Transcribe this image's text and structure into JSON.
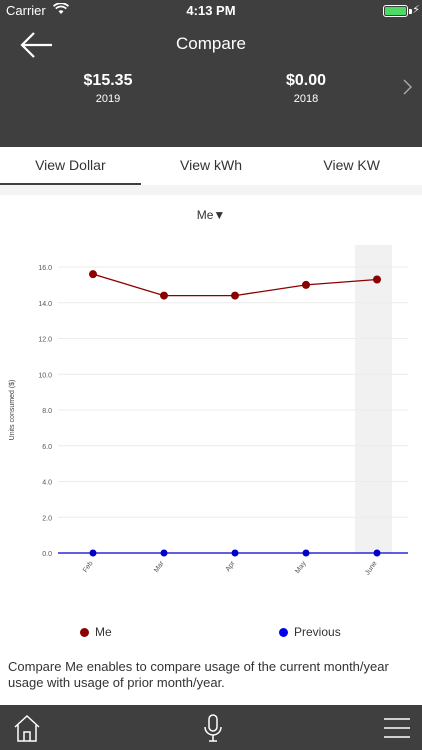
{
  "status_bar": {
    "carrier": "Carrier",
    "time": "4:13 PM",
    "icons": [
      "wifi-icon",
      "battery-icon",
      "charging-bolt-icon"
    ]
  },
  "header": {
    "title": "Compare",
    "back_icon": "arrow-left-icon",
    "next_icon": "chevron-right-icon",
    "summaries": [
      {
        "value": "$15.35",
        "year": "2019"
      },
      {
        "value": "$0.00",
        "year": "2018"
      }
    ]
  },
  "tabs": [
    {
      "label": "View Dollar",
      "active": true
    },
    {
      "label": "View kWh",
      "active": false
    },
    {
      "label": "View KW",
      "active": false
    }
  ],
  "selector": {
    "label": "Me▼"
  },
  "chart_data": {
    "type": "line",
    "categories": [
      "Feb",
      "Mar",
      "Apr",
      "May",
      "June"
    ],
    "series": [
      {
        "name": "Me",
        "color": "#8b0000",
        "values": [
          15.6,
          14.4,
          14.4,
          15.0,
          15.3
        ]
      },
      {
        "name": "Previous",
        "color": "#0000cc",
        "values": [
          0,
          0,
          0,
          0,
          0
        ]
      }
    ],
    "ylabel": "Units consumed ($)",
    "xlabel": "",
    "ylim": [
      0,
      16.0
    ],
    "yticks": [
      "0.0",
      "2.0",
      "4.0",
      "6.0",
      "8.0",
      "10.0",
      "12.0",
      "14.0",
      "16.0"
    ],
    "highlight_category": "June",
    "grid": true,
    "legend_position": "bottom"
  },
  "legend": [
    {
      "label": "Me",
      "color": "#8b0000"
    },
    {
      "label": "Previous",
      "color": "#0000ee"
    }
  ],
  "description": "Compare Me enables to compare usage of the current month/year usage with usage of prior month/year.",
  "bottom_bar": {
    "icons": [
      "home-icon",
      "microphone-icon",
      "menu-icon"
    ]
  }
}
